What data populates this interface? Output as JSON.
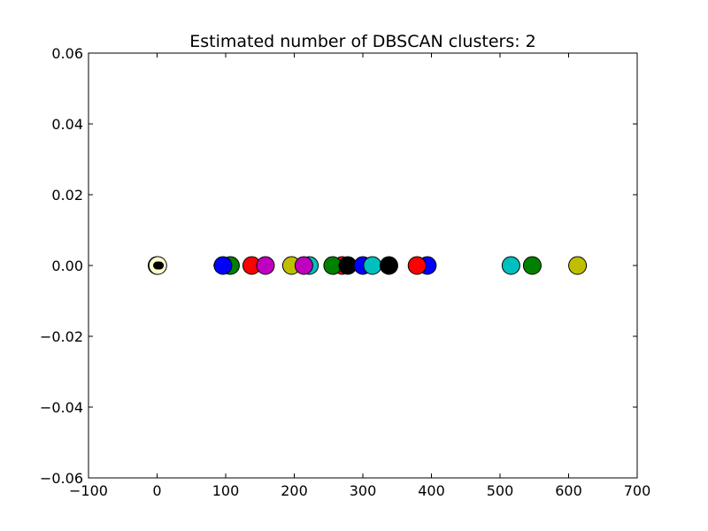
{
  "chart_data": {
    "type": "scatter",
    "title": "Estimated number of DBSCAN clusters: 2",
    "xlabel": "",
    "ylabel": "",
    "xlim": [
      -100,
      700
    ],
    "ylim": [
      -0.06,
      0.06
    ],
    "xticks": [
      "−100",
      "0",
      "100",
      "200",
      "300",
      "400",
      "500",
      "600",
      "700"
    ],
    "yticks": [
      "0.06",
      "0.04",
      "0.02",
      "0.00",
      "−0.02",
      "−0.04",
      "−0.06"
    ],
    "xtick_values": [
      -100,
      0,
      100,
      200,
      300,
      400,
      500,
      600,
      700
    ],
    "ytick_values": [
      0.06,
      0.04,
      0.02,
      0.0,
      -0.02,
      -0.04,
      -0.06
    ],
    "grid": false,
    "legend": "none",
    "points": [
      {
        "x": 0,
        "y": 0,
        "color": "#ffffcc",
        "size": "large"
      },
      {
        "x": 1,
        "y": 0,
        "color": "#ffffcc",
        "size": "large"
      },
      {
        "x": 0,
        "y": 0,
        "color": "#000000",
        "size": "small"
      },
      {
        "x": 2,
        "y": 0,
        "color": "#000000",
        "size": "small"
      },
      {
        "x": 4,
        "y": 0,
        "color": "#000000",
        "size": "small"
      },
      {
        "x": 88,
        "y": 0,
        "color": "#0000ff",
        "size": "small"
      },
      {
        "x": 107,
        "y": 0,
        "color": "#008000",
        "size": "large"
      },
      {
        "x": 96,
        "y": 0,
        "color": "#0000ff",
        "size": "large"
      },
      {
        "x": 138,
        "y": 0,
        "color": "#ff0000",
        "size": "large"
      },
      {
        "x": 158,
        "y": 0,
        "color": "#bf00bf",
        "size": "large"
      },
      {
        "x": 196,
        "y": 0,
        "color": "#bfbf00",
        "size": "large"
      },
      {
        "x": 222,
        "y": 0,
        "color": "#00bfbf",
        "size": "large"
      },
      {
        "x": 214,
        "y": 0,
        "color": "#bf00bf",
        "size": "large"
      },
      {
        "x": 270,
        "y": 0,
        "color": "#ff0000",
        "size": "large"
      },
      {
        "x": 256,
        "y": 0,
        "color": "#008000",
        "size": "large"
      },
      {
        "x": 278,
        "y": 0,
        "color": "#000000",
        "size": "large"
      },
      {
        "x": 300,
        "y": 0,
        "color": "#0000ff",
        "size": "large"
      },
      {
        "x": 314,
        "y": 0,
        "color": "#00bfbf",
        "size": "large"
      },
      {
        "x": 338,
        "y": 0,
        "color": "#000000",
        "size": "large"
      },
      {
        "x": 394,
        "y": 0,
        "color": "#0000ff",
        "size": "large"
      },
      {
        "x": 379,
        "y": 0,
        "color": "#ff0000",
        "size": "large"
      },
      {
        "x": 516,
        "y": 0,
        "color": "#00bfbf",
        "size": "large"
      },
      {
        "x": 547,
        "y": 0,
        "color": "#008000",
        "size": "large"
      },
      {
        "x": 613,
        "y": 0,
        "color": "#bfbf00",
        "size": "large"
      }
    ]
  }
}
